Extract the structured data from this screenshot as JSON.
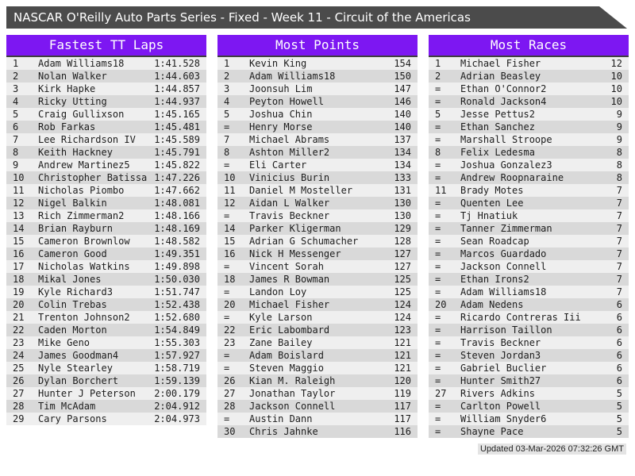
{
  "header": {
    "title": "NASCAR O'Reilly Auto Parts Series - Fixed - Week 11 - Circuit of the Americas"
  },
  "colors": {
    "accent_purple": "#7d17f2",
    "title_bar": "#4b4b4b",
    "row_odd": "#efefef",
    "row_even": "#d9d9d9"
  },
  "tables": [
    {
      "title": "Fastest TT Laps",
      "rows": [
        [
          "1",
          "Adam Williams18",
          "1:41.528"
        ],
        [
          "2",
          "Nolan Walker",
          "1:44.603"
        ],
        [
          "3",
          "Kirk Hapke",
          "1:44.857"
        ],
        [
          "4",
          "Ricky Utting",
          "1:44.937"
        ],
        [
          "5",
          "Craig Gullixson",
          "1:45.165"
        ],
        [
          "6",
          "Rob Farkas",
          "1:45.481"
        ],
        [
          "7",
          "Lee Richardson IV",
          "1:45.589"
        ],
        [
          "8",
          "Keith Hackney",
          "1:45.791"
        ],
        [
          "9",
          "Andrew Martinez5",
          "1:45.822"
        ],
        [
          "10",
          "Christopher Batissa",
          "1:47.226"
        ],
        [
          "11",
          "Nicholas Piombo",
          "1:47.662"
        ],
        [
          "12",
          "Nigel Balkin",
          "1:48.081"
        ],
        [
          "13",
          "Rich Zimmerman2",
          "1:48.166"
        ],
        [
          "14",
          "Brian Rayburn",
          "1:48.169"
        ],
        [
          "15",
          "Cameron Brownlow",
          "1:48.582"
        ],
        [
          "16",
          "Cameron Good",
          "1:49.351"
        ],
        [
          "17",
          "Nicholas Watkins",
          "1:49.898"
        ],
        [
          "18",
          "Mikal Jones",
          "1:50.030"
        ],
        [
          "19",
          "Kyle Richard3",
          "1:51.747"
        ],
        [
          "20",
          "Colin Trebas",
          "1:52.438"
        ],
        [
          "21",
          "Trenton Johnson2",
          "1:52.680"
        ],
        [
          "22",
          "Caden Morton",
          "1:54.849"
        ],
        [
          "23",
          "Mike Geno",
          "1:55.303"
        ],
        [
          "24",
          "James Goodman4",
          "1:57.927"
        ],
        [
          "25",
          "Nyle Stearley",
          "1:58.719"
        ],
        [
          "26",
          "Dylan Borchert",
          "1:59.139"
        ],
        [
          "27",
          "Hunter J Peterson",
          "2:00.179"
        ],
        [
          "28",
          "Tim McAdam",
          "2:04.912"
        ],
        [
          "29",
          "Cary Parsons",
          "2:04.973"
        ]
      ]
    },
    {
      "title": "Most Points",
      "rows": [
        [
          "1",
          "Kevin King",
          "154"
        ],
        [
          "2",
          "Adam Williams18",
          "150"
        ],
        [
          "3",
          "Joonsuh Lim",
          "147"
        ],
        [
          "4",
          "Peyton Howell",
          "146"
        ],
        [
          "5",
          "Joshua Chin",
          "140"
        ],
        [
          "=",
          "Henry Morse",
          "140"
        ],
        [
          "7",
          "Michael Abrams",
          "137"
        ],
        [
          "8",
          "Ashton Miller2",
          "134"
        ],
        [
          "=",
          "Eli Carter",
          "134"
        ],
        [
          "10",
          "Vinicius Burin",
          "133"
        ],
        [
          "11",
          "Daniel M Mosteller",
          "131"
        ],
        [
          "12",
          "Aidan L Walker",
          "130"
        ],
        [
          "=",
          "Travis Beckner",
          "130"
        ],
        [
          "14",
          "Parker Kligerman",
          "129"
        ],
        [
          "15",
          "Adrian G Schumacher",
          "128"
        ],
        [
          "16",
          "Nick H Messenger",
          "127"
        ],
        [
          "=",
          "Vincent Sorah",
          "127"
        ],
        [
          "18",
          "James R Bowman",
          "125"
        ],
        [
          "=",
          "Landon Loy",
          "125"
        ],
        [
          "20",
          "Michael Fisher",
          "124"
        ],
        [
          "=",
          "Kyle Larson",
          "124"
        ],
        [
          "22",
          "Eric Labombard",
          "123"
        ],
        [
          "23",
          "Zane Bailey",
          "121"
        ],
        [
          "=",
          "Adam Boislard",
          "121"
        ],
        [
          "=",
          "Steven Maggio",
          "121"
        ],
        [
          "26",
          "Kian M. Raleigh",
          "120"
        ],
        [
          "27",
          "Jonathan Taylor",
          "119"
        ],
        [
          "28",
          "Jackson Connell",
          "117"
        ],
        [
          "=",
          "Austin Dann",
          "117"
        ],
        [
          "30",
          "Chris Jahnke",
          "116"
        ]
      ]
    },
    {
      "title": "Most Races",
      "rows": [
        [
          "1",
          "Michael Fisher",
          "12"
        ],
        [
          "2",
          "Adrian Beasley",
          "10"
        ],
        [
          "=",
          "Ethan O'Connor2",
          "10"
        ],
        [
          "=",
          "Ronald Jackson4",
          "10"
        ],
        [
          "5",
          "Jesse Pettus2",
          "9"
        ],
        [
          "=",
          "Ethan Sanchez",
          "9"
        ],
        [
          "=",
          "Marshall Stroope",
          "9"
        ],
        [
          "8",
          "Felix Ledesma",
          "8"
        ],
        [
          "=",
          "Joshua Gonzalez3",
          "8"
        ],
        [
          "=",
          "Andrew Roopnaraine",
          "8"
        ],
        [
          "11",
          "Brady Motes",
          "7"
        ],
        [
          "=",
          "Quenten Lee",
          "7"
        ],
        [
          "=",
          "Tj Hnatiuk",
          "7"
        ],
        [
          "=",
          "Tanner Zimmerman",
          "7"
        ],
        [
          "=",
          "Sean Roadcap",
          "7"
        ],
        [
          "=",
          "Marcos Guardado",
          "7"
        ],
        [
          "=",
          "Jackson Connell",
          "7"
        ],
        [
          "=",
          "Ethan Irons2",
          "7"
        ],
        [
          "=",
          "Adam Williams18",
          "7"
        ],
        [
          "20",
          "Adam Nedens",
          "6"
        ],
        [
          "=",
          "Ricardo Contreras Iii",
          "6"
        ],
        [
          "=",
          "Harrison Taillon",
          "6"
        ],
        [
          "=",
          "Travis Beckner",
          "6"
        ],
        [
          "=",
          "Steven Jordan3",
          "6"
        ],
        [
          "=",
          "Gabriel Buclier",
          "6"
        ],
        [
          "=",
          "Hunter Smith27",
          "6"
        ],
        [
          "27",
          "Rivers Adkins",
          "5"
        ],
        [
          "=",
          "Carlton Powell",
          "5"
        ],
        [
          "=",
          "William Snyder6",
          "5"
        ],
        [
          "=",
          "Shayne Pace",
          "5"
        ]
      ]
    }
  ],
  "footer": {
    "updated": "Updated 03-Mar-2026 07:32:26 GMT"
  }
}
